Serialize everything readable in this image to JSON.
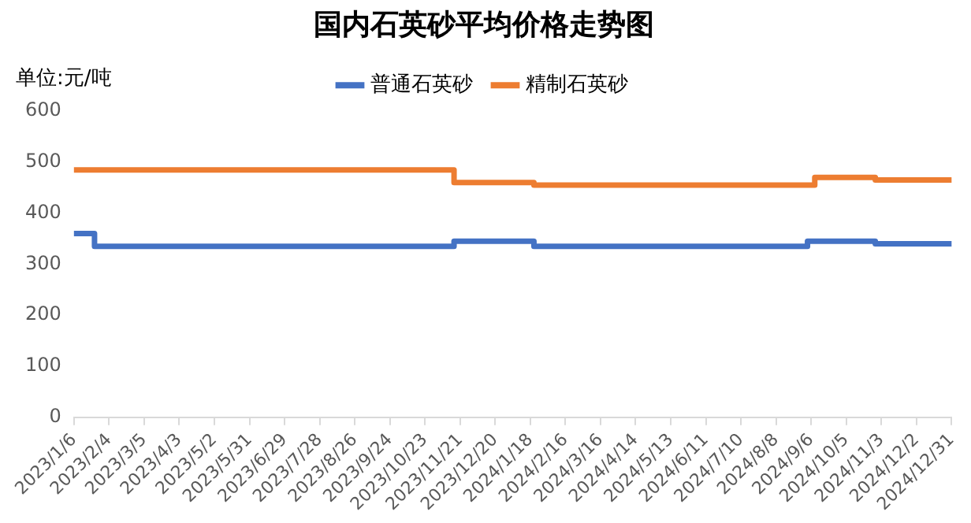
{
  "chart_data": {
    "type": "step",
    "title": "国内石英砂平均价格走势图",
    "ylabel": "单位:元/吨",
    "series": [
      {
        "name": "普通石英砂",
        "color": "#4472c4",
        "x": [
          "2023-01-06",
          "2023-01-23",
          "2023-11-16",
          "2024-01-21",
          "2024-09-03",
          "2024-10-29",
          "2024-12-31"
        ],
        "values": [
          360,
          335,
          345,
          335,
          345,
          340,
          340
        ]
      },
      {
        "name": "精制石英砂",
        "color": "#ed7d31",
        "x": [
          "2023-01-06",
          "2023-11-16",
          "2024-01-21",
          "2024-09-09",
          "2024-10-29",
          "2024-12-31"
        ],
        "values": [
          485,
          460,
          455,
          470,
          465,
          465
        ]
      }
    ],
    "xlim": [
      "2023-01-06",
      "2024-12-31"
    ],
    "xticks": [
      {
        "value": "2023-01-06",
        "label": "2023/1/6"
      },
      {
        "value": "2023-02-04",
        "label": "2023/2/4"
      },
      {
        "value": "2023-03-05",
        "label": "2023/3/5"
      },
      {
        "value": "2023-04-03",
        "label": "2023/4/3"
      },
      {
        "value": "2023-05-02",
        "label": "2023/5/2"
      },
      {
        "value": "2023-05-31",
        "label": "2023/5/31"
      },
      {
        "value": "2023-06-29",
        "label": "2023/6/29"
      },
      {
        "value": "2023-07-28",
        "label": "2023/7/28"
      },
      {
        "value": "2023-08-26",
        "label": "2023/8/26"
      },
      {
        "value": "2023-09-24",
        "label": "2023/9/24"
      },
      {
        "value": "2023-10-23",
        "label": "2023/10/23"
      },
      {
        "value": "2023-11-21",
        "label": "2023/11/21"
      },
      {
        "value": "2023-12-20",
        "label": "2023/12/20"
      },
      {
        "value": "2024-01-18",
        "label": "2024/1/18"
      },
      {
        "value": "2024-02-16",
        "label": "2024/2/16"
      },
      {
        "value": "2024-03-16",
        "label": "2024/3/16"
      },
      {
        "value": "2024-04-14",
        "label": "2024/4/14"
      },
      {
        "value": "2024-05-13",
        "label": "2024/5/13"
      },
      {
        "value": "2024-06-11",
        "label": "2024/6/11"
      },
      {
        "value": "2024-07-10",
        "label": "2024/7/10"
      },
      {
        "value": "2024-08-08",
        "label": "2024/8/8"
      },
      {
        "value": "2024-09-06",
        "label": "2024/9/6"
      },
      {
        "value": "2024-10-05",
        "label": "2024/10/5"
      },
      {
        "value": "2024-11-03",
        "label": "2024/11/3"
      },
      {
        "value": "2024-12-02",
        "label": "2024/12/2"
      },
      {
        "value": "2024-12-31",
        "label": "2024/12/31"
      }
    ],
    "ylim": [
      0,
      600
    ],
    "yticks": [
      0,
      100,
      200,
      300,
      400,
      500,
      600
    ],
    "grid": false,
    "legend": "top",
    "marker": "none",
    "line_style": "solid"
  }
}
